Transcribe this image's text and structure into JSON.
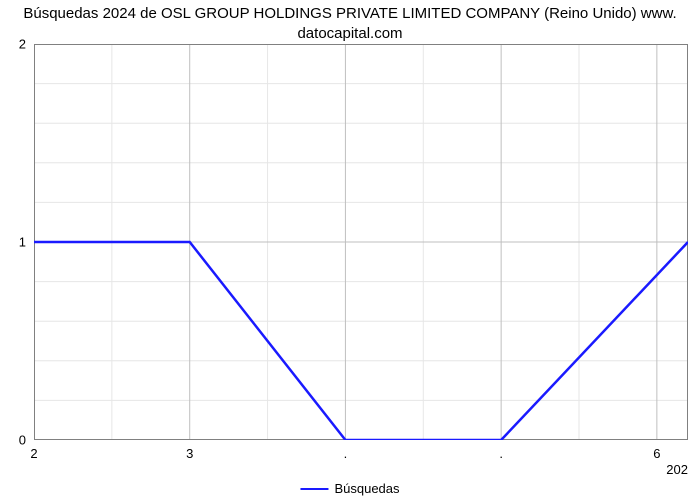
{
  "chart": {
    "type": "line",
    "title_line1": "Búsquedas 2024 de OSL GROUP HOLDINGS PRIVATE LIMITED COMPANY (Reino Unido) www.",
    "title_line2": "datocapital.com",
    "title_fontsize": 15,
    "title_color": "#000000",
    "background_color": "#ffffff",
    "grid_major_color": "#bfbfbf",
    "grid_minor_color": "#e6e6e6",
    "grid_major_width": 1,
    "grid_minor_width": 1,
    "border_color": "#808080",
    "y": {
      "min": 0,
      "max": 2,
      "major_ticks": [
        0,
        1,
        2
      ],
      "minor_per_major": 5,
      "label_fontsize": 13,
      "label_color": "#000000"
    },
    "x": {
      "min": 2.0,
      "max": 6.2,
      "major_ticks": [
        2,
        3,
        4,
        5,
        6
      ],
      "labels": [
        "2",
        "3",
        ".",
        ".",
        "6"
      ],
      "minor_per_major": 2,
      "secondary_label": "202",
      "label_fontsize": 13,
      "label_color": "#000000"
    },
    "series": {
      "name": "Búsquedas",
      "color": "#1a1aff",
      "width": 2.5,
      "points": [
        [
          2.0,
          1.0
        ],
        [
          3.0,
          1.0
        ],
        [
          4.0,
          0.0
        ],
        [
          5.0,
          0.0
        ],
        [
          6.2,
          1.0
        ]
      ]
    },
    "legend": {
      "label": "Búsquedas",
      "line_color": "#1a1aff",
      "line_width": 2.5,
      "line_length": 28,
      "fontsize": 13
    }
  }
}
